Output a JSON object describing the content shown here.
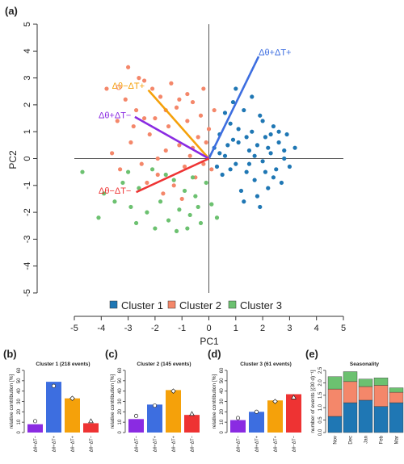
{
  "colors": {
    "cluster1": "#1f77b4",
    "cluster2": "#f4876a",
    "cluster3": "#6cc170",
    "purple": "#8a2be2",
    "blue": "#3d6ee0",
    "orange": "#f5a10a",
    "red": "#ee3333"
  },
  "chart_data": [
    {
      "panel": "(a)",
      "type": "scatter",
      "title": "",
      "xlabel": "PC1",
      "ylabel": "PC2",
      "xlim": [
        -5,
        5
      ],
      "ylim": [
        -5,
        5
      ],
      "xticks": [
        -5,
        -4,
        -3,
        -2,
        -1,
        0,
        1,
        2,
        3,
        4,
        5
      ],
      "yticks": [
        -5,
        -4,
        -3,
        -2,
        -1,
        0,
        1,
        2,
        3,
        4,
        5
      ],
      "legend": {
        "placement": "bottom",
        "entries": [
          "Cluster 1",
          "Cluster 2",
          "Cluster 3"
        ]
      },
      "series": [
        {
          "name": "Cluster 1",
          "color": "cluster1",
          "points": [
            [
              0.2,
              0.4
            ],
            [
              0.4,
              0.9
            ],
            [
              0.6,
              0.1
            ],
            [
              0.8,
              1.3
            ],
            [
              1.0,
              -0.2
            ],
            [
              1.1,
              0.6
            ],
            [
              1.3,
              1.8
            ],
            [
              1.4,
              -0.5
            ],
            [
              1.5,
              0.3
            ],
            [
              1.6,
              1.0
            ],
            [
              1.7,
              -0.8
            ],
            [
              1.8,
              0.5
            ],
            [
              1.9,
              1.6
            ],
            [
              2.0,
              -0.1
            ],
            [
              2.1,
              0.8
            ],
            [
              2.2,
              -1.1
            ],
            [
              2.3,
              0.2
            ],
            [
              2.4,
              1.2
            ],
            [
              2.5,
              -0.4
            ],
            [
              2.6,
              0.6
            ],
            [
              2.7,
              -0.9
            ],
            [
              2.8,
              0.0
            ],
            [
              2.9,
              0.9
            ],
            [
              3.0,
              -0.3
            ],
            [
              3.2,
              0.4
            ],
            [
              0.5,
              -0.6
            ],
            [
              0.7,
              0.5
            ],
            [
              0.9,
              2.1
            ],
            [
              1.2,
              -1.2
            ],
            [
              1.4,
              0.8
            ],
            [
              1.6,
              2.3
            ],
            [
              1.8,
              -1.4
            ],
            [
              2.0,
              1.4
            ],
            [
              2.2,
              0.4
            ],
            [
              2.4,
              -0.7
            ],
            [
              0.3,
              -0.3
            ],
            [
              0.6,
              1.7
            ],
            [
              1.0,
              2.6
            ],
            [
              1.3,
              -1.6
            ],
            [
              1.9,
              -1.8
            ],
            [
              2.6,
              1.0
            ],
            [
              0.4,
              0.2
            ],
            [
              0.8,
              -0.4
            ],
            [
              1.1,
              1.1
            ],
            [
              1.5,
              -0.2
            ],
            [
              1.7,
              0.1
            ],
            [
              2.1,
              -0.5
            ],
            [
              2.3,
              0.9
            ],
            [
              2.8,
              0.3
            ],
            [
              0.9,
              0.7
            ]
          ]
        },
        {
          "name": "Cluster 2",
          "color": "cluster2",
          "points": [
            [
              -3.8,
              2.6
            ],
            [
              -3.4,
              1.4
            ],
            [
              -3.1,
              2.2
            ],
            [
              -2.9,
              0.6
            ],
            [
              -2.7,
              1.8
            ],
            [
              -2.5,
              -0.2
            ],
            [
              -2.4,
              2.9
            ],
            [
              -2.2,
              0.9
            ],
            [
              -2.0,
              1.5
            ],
            [
              -1.9,
              -0.6
            ],
            [
              -1.8,
              2.3
            ],
            [
              -1.6,
              0.3
            ],
            [
              -1.5,
              1.2
            ],
            [
              -1.3,
              -1.0
            ],
            [
              -1.2,
              1.9
            ],
            [
              -1.1,
              0.5
            ],
            [
              -0.9,
              -0.3
            ],
            [
              -0.8,
              1.4
            ],
            [
              -0.7,
              0.1
            ],
            [
              -0.6,
              2.1
            ],
            [
              -0.5,
              -0.7
            ],
            [
              -0.4,
              0.8
            ],
            [
              -0.3,
              1.6
            ],
            [
              -0.2,
              -0.2
            ],
            [
              -0.1,
              0.6
            ],
            [
              0.0,
              1.1
            ],
            [
              0.1,
              -0.4
            ],
            [
              0.2,
              1.8
            ],
            [
              -3.0,
              3.4
            ],
            [
              -2.6,
              3.0
            ],
            [
              -2.3,
              -0.9
            ],
            [
              -2.1,
              2.6
            ],
            [
              -1.7,
              -1.3
            ],
            [
              -1.4,
              2.8
            ],
            [
              -1.0,
              -1.5
            ],
            [
              -0.8,
              2.4
            ],
            [
              -3.6,
              0.2
            ],
            [
              -3.3,
              -0.4
            ],
            [
              -2.8,
              1.2
            ],
            [
              -1.6,
              1.8
            ],
            [
              -0.6,
              0.4
            ],
            [
              -0.2,
              2.6
            ],
            [
              -1.9,
              0.0
            ],
            [
              -2.4,
              1.5
            ],
            [
              -1.1,
              2.2
            ]
          ]
        },
        {
          "name": "Cluster 3",
          "color": "cluster3",
          "points": [
            [
              -4.7,
              -0.5
            ],
            [
              -4.1,
              -2.2
            ],
            [
              -3.9,
              -1.3
            ],
            [
              -3.2,
              -0.9
            ],
            [
              -2.9,
              -1.8
            ],
            [
              -2.6,
              -1.1
            ],
            [
              -2.3,
              -2.0
            ],
            [
              -2.1,
              -0.4
            ],
            [
              -1.8,
              -1.6
            ],
            [
              -1.5,
              -2.3
            ],
            [
              -1.3,
              -0.8
            ],
            [
              -1.1,
              -1.9
            ],
            [
              -0.9,
              -1.2
            ],
            [
              -0.7,
              -2.1
            ],
            [
              -0.5,
              -1.4
            ],
            [
              -0.3,
              -2.4
            ],
            [
              -0.1,
              -0.9
            ],
            [
              0.1,
              -1.7
            ],
            [
              0.3,
              -2.2
            ],
            [
              -3.5,
              -1.6
            ],
            [
              -2.0,
              -2.6
            ],
            [
              -1.6,
              -0.6
            ],
            [
              -0.8,
              -2.6
            ],
            [
              -0.4,
              -1.8
            ],
            [
              -2.7,
              -2.4
            ],
            [
              -1.2,
              -2.7
            ],
            [
              -3.0,
              -0.5
            ],
            [
              -0.6,
              -0.7
            ]
          ]
        }
      ],
      "vectors": [
        {
          "label": "Δθ+ΔT+",
          "color": "blue",
          "end": [
            1.85,
            3.8
          ]
        },
        {
          "label": "Δθ−ΔT+",
          "color": "orange",
          "end": [
            -2.25,
            2.55
          ]
        },
        {
          "label": "Δθ+ΔT−",
          "color": "purple",
          "end": [
            -2.75,
            1.55
          ]
        },
        {
          "label": "Δθ−ΔT−",
          "color": "red",
          "end": [
            -2.7,
            -1.25
          ]
        }
      ],
      "vector_labels": [
        {
          "text": "Δθ+ΔT+",
          "at": [
            1.85,
            3.85
          ],
          "anchor": "start",
          "color": "blue"
        },
        {
          "text": "Δθ−ΔT+",
          "at": [
            -3.6,
            2.6
          ],
          "anchor": "start",
          "color": "orange"
        },
        {
          "text": "Δθ+ΔT−",
          "at": [
            -4.1,
            1.5
          ],
          "anchor": "start",
          "color": "purple"
        },
        {
          "text": "Δθ−ΔT−",
          "at": [
            -4.1,
            -1.3
          ],
          "anchor": "start",
          "color": "red"
        }
      ],
      "arrow_hollow_point": [
        -3.35,
        2.65
      ]
    },
    {
      "panel": "(b)",
      "type": "bar",
      "title": "Cluster 1 (218 events)",
      "ylabel": "relative contribution [%]",
      "ylim": [
        0,
        60
      ],
      "yticks": [
        0,
        10,
        20,
        30,
        40,
        50,
        60
      ],
      "categories": [
        "Δθ+ΔT−",
        "Δθ+ΔT+",
        "Δθ−ΔT+",
        "Δθ−ΔT−"
      ],
      "values": [
        8,
        49,
        33,
        9
      ],
      "colors": [
        "purple",
        "blue",
        "orange",
        "red"
      ],
      "markers": [
        {
          "shape": "circle",
          "value": 11
        },
        {
          "shape": "circle",
          "value": 45
        },
        {
          "shape": "diamond",
          "value": 33
        },
        {
          "shape": "triangle",
          "value": 11
        }
      ]
    },
    {
      "panel": "(c)",
      "type": "bar",
      "title": "Cluster 2 (145 events)",
      "ylabel": "relative contribution [%]",
      "ylim": [
        0,
        60
      ],
      "yticks": [
        0,
        10,
        20,
        30,
        40,
        50,
        60
      ],
      "categories": [
        "Δθ+ΔT−",
        "Δθ+ΔT+",
        "Δθ−ΔT+",
        "Δθ−ΔT−"
      ],
      "values": [
        13,
        27,
        41,
        17
      ],
      "colors": [
        "purple",
        "blue",
        "orange",
        "red"
      ],
      "markers": [
        {
          "shape": "circle",
          "value": 16
        },
        {
          "shape": "circle",
          "value": 26
        },
        {
          "shape": "diamond",
          "value": 40
        },
        {
          "shape": "triangle",
          "value": 18
        }
      ]
    },
    {
      "panel": "(d)",
      "type": "bar",
      "title": "Cluster 3 (61 events)",
      "ylabel": "relative contribution [%]",
      "ylim": [
        0,
        60
      ],
      "yticks": [
        0,
        10,
        20,
        30,
        40,
        50,
        60
      ],
      "categories": [
        "Δθ+ΔT−",
        "Δθ+ΔT+",
        "Δθ−ΔT+",
        "Δθ−ΔT−"
      ],
      "values": [
        12,
        20,
        31,
        37
      ],
      "colors": [
        "purple",
        "blue",
        "orange",
        "red"
      ],
      "markers": [
        {
          "shape": "circle",
          "value": 14
        },
        {
          "shape": "circle",
          "value": 20
        },
        {
          "shape": "diamond",
          "value": 30
        },
        {
          "shape": "triangle",
          "value": 34
        }
      ]
    },
    {
      "panel": "(e)",
      "type": "bar",
      "stacked": true,
      "title": "Seasonality",
      "ylabel": "number of events [(30 d)⁻¹]",
      "ylim": [
        0,
        2.5
      ],
      "yticks": [
        0.0,
        0.5,
        1.0,
        1.5,
        2.0,
        2.5
      ],
      "categories": [
        "Nov",
        "Dec",
        "Jan",
        "Feb",
        "Mar"
      ],
      "category_labels_shown": [
        "Nov",
        "Dec",
        "Jan",
        "Feb",
        "Mar"
      ],
      "series": [
        {
          "name": "Cluster 1",
          "color": "cluster1",
          "values": [
            0.65,
            1.2,
            1.3,
            1.05,
            1.2
          ]
        },
        {
          "name": "Cluster 2",
          "color": "cluster2",
          "values": [
            1.1,
            0.85,
            0.55,
            0.85,
            0.42
          ]
        },
        {
          "name": "Cluster 3",
          "color": "cluster3",
          "values": [
            0.5,
            0.4,
            0.3,
            0.3,
            0.18
          ]
        }
      ]
    }
  ]
}
